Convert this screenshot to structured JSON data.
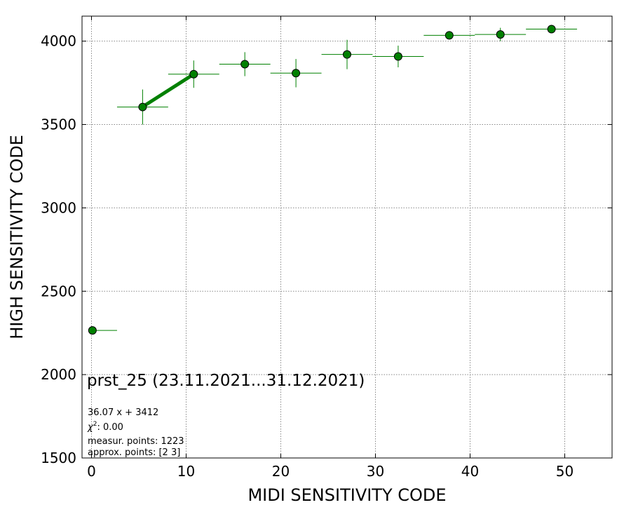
{
  "chart_data": {
    "type": "scatter",
    "xlabel": "MIDI SENSITIVITY CODE",
    "ylabel": "HIGH SENSITIVITY CODE",
    "xlim": [
      -1,
      55
    ],
    "ylim": [
      1500,
      4150
    ],
    "xticks": [
      0,
      10,
      20,
      30,
      40,
      50
    ],
    "yticks": [
      1500,
      2000,
      2500,
      3000,
      3500,
      4000
    ],
    "grid": true,
    "colors": {
      "marker": "#008000",
      "marker_edge": "#000000",
      "errorbar": "#008000",
      "fit": "#008000",
      "grid": "#888888"
    },
    "points": [
      {
        "x": 0.1,
        "y": 2265,
        "xerr": [
          0.1,
          2.6
        ],
        "yerr": 0
      },
      {
        "x": 5.4,
        "y": 3605,
        "xerr": 2.7,
        "yerr": 105
      },
      {
        "x": 10.8,
        "y": 3802,
        "xerr": 2.7,
        "yerr": 82
      },
      {
        "x": 16.2,
        "y": 3862,
        "xerr": 2.7,
        "yerr": 72
      },
      {
        "x": 21.6,
        "y": 3808,
        "xerr": 2.7,
        "yerr": 85
      },
      {
        "x": 27.0,
        "y": 3920,
        "xerr": 2.7,
        "yerr": 88
      },
      {
        "x": 32.4,
        "y": 3908,
        "xerr": 2.7,
        "yerr": 65
      },
      {
        "x": 37.8,
        "y": 4035,
        "xerr": 2.7,
        "yerr": 25
      },
      {
        "x": 43.2,
        "y": 4040,
        "xerr": 2.7,
        "yerr": 40
      },
      {
        "x": 48.6,
        "y": 4072,
        "xerr": 2.7,
        "yerr": 15
      }
    ],
    "fit_line": {
      "x": [
        5.4,
        10.8
      ],
      "y": [
        3606,
        3802
      ]
    },
    "annotations": {
      "title": "prst_25 (23.11.2021...31.12.2021)",
      "equation": "36.07 x + 3412",
      "chi_symbol": "χ",
      "chi_exp": "2",
      "chi_value": ": 0.00",
      "measur_points": "measur. points: 1223",
      "approx_points": "approx. points: [2 3]"
    }
  }
}
